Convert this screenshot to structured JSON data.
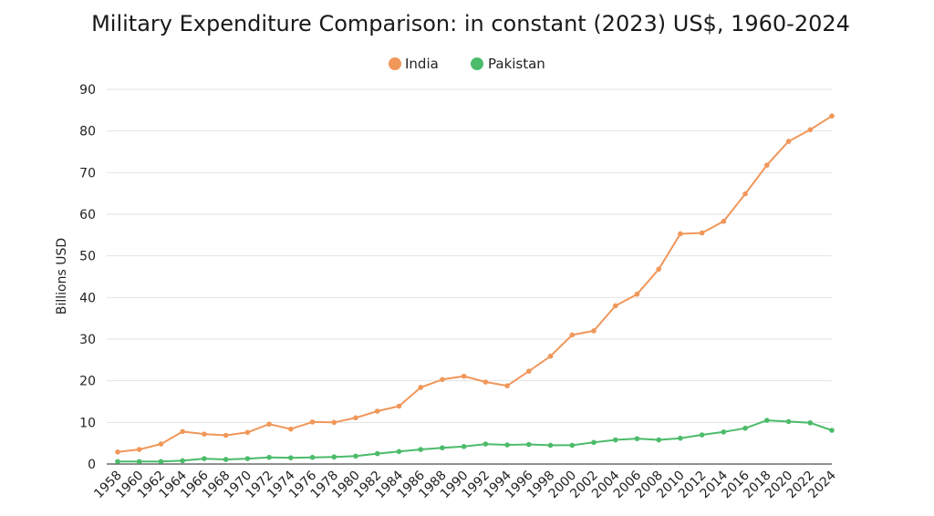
{
  "chart_data": {
    "type": "line",
    "title": "Military Expenditure Comparison: in constant (2023) US$, 1960-2024",
    "xlabel": "",
    "ylabel": "Billions USD",
    "ylim": [
      0,
      90
    ],
    "yticks": [
      0,
      10,
      20,
      30,
      40,
      50,
      60,
      70,
      80,
      90
    ],
    "xticks": [
      "1958",
      "1960",
      "1962",
      "1964",
      "1966",
      "1968",
      "1970",
      "1972",
      "1974",
      "1976",
      "1978",
      "1980",
      "1982",
      "1984",
      "1986",
      "1988",
      "1990",
      "1992",
      "1994",
      "1996",
      "1998",
      "2000",
      "2002",
      "2004",
      "2006",
      "2008",
      "2010",
      "2012",
      "2014",
      "2016",
      "2018",
      "2020",
      "2022",
      "2024"
    ],
    "grid": true,
    "legend_position": "top-center",
    "series": [
      {
        "name": "India",
        "color": "#f0975a",
        "values": [
          2.9,
          3.5,
          4.8,
          7.8,
          7.2,
          6.9,
          7.6,
          9.6,
          8.4,
          10.1,
          10.0,
          11.1,
          12.7,
          13.9,
          18.4,
          20.3,
          21.1,
          19.7,
          18.8,
          22.3,
          25.9,
          31.0,
          32.0,
          38.0,
          40.8,
          46.8,
          55.3,
          55.5,
          58.3,
          64.9,
          71.8,
          77.5,
          80.3,
          83.6
        ]
      },
      {
        "name": "Pakistan",
        "color": "#4cbb6a",
        "values": [
          0.6,
          0.6,
          0.6,
          0.8,
          1.3,
          1.1,
          1.3,
          1.6,
          1.5,
          1.6,
          1.7,
          1.9,
          2.5,
          3.0,
          3.5,
          3.9,
          4.2,
          4.8,
          4.6,
          4.7,
          4.5,
          4.5,
          5.2,
          5.8,
          6.1,
          5.8,
          6.2,
          7.0,
          7.7,
          8.6,
          10.5,
          10.2,
          9.9,
          8.1
        ]
      }
    ]
  }
}
